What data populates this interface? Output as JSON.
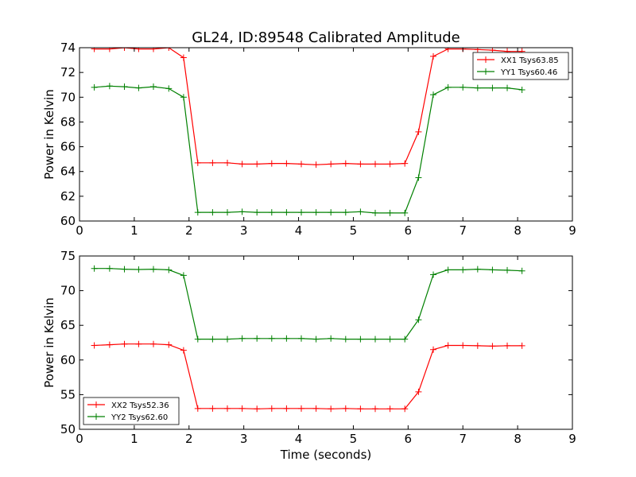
{
  "title": "GL24, ID:89548 Calibrated Amplitude",
  "chart_data": [
    {
      "type": "line",
      "title": "GL24, ID:89548 Calibrated Amplitude",
      "xlabel": "",
      "ylabel": "Power in Kelvin",
      "xlim": [
        0,
        9
      ],
      "ylim": [
        60,
        74
      ],
      "xticks": [
        "0",
        "1",
        "2",
        "3",
        "4",
        "5",
        "6",
        "7",
        "8",
        "9"
      ],
      "yticks": [
        "60",
        "62",
        "64",
        "66",
        "68",
        "70",
        "72",
        "74"
      ],
      "legend_position": "top-right",
      "x": [
        0.27,
        0.55,
        0.82,
        1.08,
        1.35,
        1.63,
        1.9,
        2.16,
        2.43,
        2.7,
        2.97,
        3.24,
        3.51,
        3.78,
        4.05,
        4.32,
        4.59,
        4.86,
        5.13,
        5.4,
        5.67,
        5.94,
        6.19,
        6.46,
        6.73,
        7.0,
        7.27,
        7.54,
        7.81,
        8.08
      ],
      "series": [
        {
          "name": "XX1 Tsys63.85",
          "color": "#ff0000",
          "values": [
            73.9,
            73.9,
            74.0,
            73.9,
            73.9,
            74.0,
            73.2,
            64.7,
            64.7,
            64.7,
            64.6,
            64.6,
            64.65,
            64.65,
            64.6,
            64.55,
            64.6,
            64.65,
            64.6,
            64.6,
            64.6,
            64.65,
            67.2,
            73.3,
            73.9,
            73.9,
            73.85,
            73.8,
            73.7,
            73.7
          ]
        },
        {
          "name": "YY1 Tsys60.46",
          "color": "#008000",
          "values": [
            70.8,
            70.9,
            70.85,
            70.75,
            70.85,
            70.7,
            70.0,
            60.7,
            60.7,
            60.7,
            60.75,
            60.7,
            60.7,
            60.7,
            60.7,
            60.7,
            60.7,
            60.7,
            60.75,
            60.65,
            60.65,
            60.65,
            63.5,
            70.2,
            70.8,
            70.8,
            70.75,
            70.75,
            70.75,
            70.6
          ]
        }
      ]
    },
    {
      "type": "line",
      "title": "",
      "xlabel": "Time (seconds)",
      "ylabel": "Power in Kelvin",
      "xlim": [
        0,
        9
      ],
      "ylim": [
        50,
        75
      ],
      "xticks": [
        "0",
        "1",
        "2",
        "3",
        "4",
        "5",
        "6",
        "7",
        "8",
        "9"
      ],
      "yticks": [
        "50",
        "55",
        "60",
        "65",
        "70",
        "75"
      ],
      "legend_position": "bottom-left",
      "x": [
        0.27,
        0.55,
        0.82,
        1.08,
        1.35,
        1.63,
        1.9,
        2.16,
        2.43,
        2.7,
        2.97,
        3.24,
        3.51,
        3.78,
        4.05,
        4.32,
        4.59,
        4.86,
        5.13,
        5.4,
        5.67,
        5.94,
        6.19,
        6.46,
        6.73,
        7.0,
        7.27,
        7.54,
        7.81,
        8.08
      ],
      "series": [
        {
          "name": "XX2 Tsys52.36",
          "color": "#ff0000",
          "values": [
            62.1,
            62.2,
            62.3,
            62.3,
            62.3,
            62.2,
            61.4,
            53.0,
            53.0,
            53.0,
            53.0,
            52.95,
            53.0,
            53.0,
            53.0,
            53.0,
            52.95,
            53.0,
            52.95,
            52.95,
            52.95,
            52.95,
            55.4,
            61.5,
            62.1,
            62.1,
            62.05,
            62.0,
            62.05,
            62.05
          ]
        },
        {
          "name": "YY2 Tsys62.60",
          "color": "#008000",
          "values": [
            73.2,
            73.2,
            73.1,
            73.05,
            73.1,
            73.0,
            72.2,
            63.0,
            63.0,
            63.0,
            63.1,
            63.1,
            63.1,
            63.1,
            63.1,
            63.0,
            63.1,
            63.0,
            63.0,
            63.0,
            63.0,
            63.0,
            65.8,
            72.3,
            73.0,
            73.0,
            73.1,
            73.0,
            72.95,
            72.85
          ]
        }
      ]
    }
  ]
}
